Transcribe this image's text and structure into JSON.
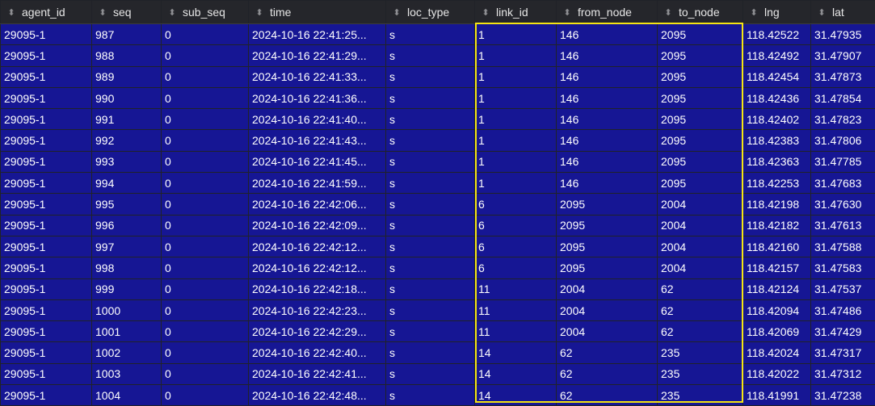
{
  "columns": [
    {
      "key": "agent_id",
      "label": "agent_id"
    },
    {
      "key": "seq",
      "label": "seq"
    },
    {
      "key": "sub_seq",
      "label": "sub_seq"
    },
    {
      "key": "time",
      "label": "time"
    },
    {
      "key": "loc_type",
      "label": "loc_type"
    },
    {
      "key": "link_id",
      "label": "link_id"
    },
    {
      "key": "from_node",
      "label": "from_node"
    },
    {
      "key": "to_node",
      "label": "to_node"
    },
    {
      "key": "lng",
      "label": "lng"
    },
    {
      "key": "lat",
      "label": "lat"
    }
  ],
  "sort_icon": "sort-arrows-icon",
  "colors": {
    "cell_default": "#161694",
    "cell_seq": "#5e1a55",
    "cell_highlight_red": "#96161d",
    "selection_border": "#f5e514"
  },
  "rows": [
    {
      "agent_id": "29095-1",
      "seq": "987",
      "sub_seq": "0",
      "time": "2024-10-16 22:41:25...",
      "loc_type": "s",
      "link_id": "1",
      "from_node": "146",
      "to_node": "2095",
      "lng": "118.42522",
      "lat": "31.47935",
      "red": [
        "to_node"
      ]
    },
    {
      "agent_id": "29095-1",
      "seq": "988",
      "sub_seq": "0",
      "time": "2024-10-16 22:41:29...",
      "loc_type": "s",
      "link_id": "1",
      "from_node": "146",
      "to_node": "2095",
      "lng": "118.42492",
      "lat": "31.47907",
      "red": [
        "to_node"
      ]
    },
    {
      "agent_id": "29095-1",
      "seq": "989",
      "sub_seq": "0",
      "time": "2024-10-16 22:41:33...",
      "loc_type": "s",
      "link_id": "1",
      "from_node": "146",
      "to_node": "2095",
      "lng": "118.42454",
      "lat": "31.47873",
      "red": [
        "to_node"
      ]
    },
    {
      "agent_id": "29095-1",
      "seq": "990",
      "sub_seq": "0",
      "time": "2024-10-16 22:41:36...",
      "loc_type": "s",
      "link_id": "1",
      "from_node": "146",
      "to_node": "2095",
      "lng": "118.42436",
      "lat": "31.47854",
      "red": [
        "to_node"
      ]
    },
    {
      "agent_id": "29095-1",
      "seq": "991",
      "sub_seq": "0",
      "time": "2024-10-16 22:41:40...",
      "loc_type": "s",
      "link_id": "1",
      "from_node": "146",
      "to_node": "2095",
      "lng": "118.42402",
      "lat": "31.47823",
      "red": [
        "to_node"
      ]
    },
    {
      "agent_id": "29095-1",
      "seq": "992",
      "sub_seq": "0",
      "time": "2024-10-16 22:41:43...",
      "loc_type": "s",
      "link_id": "1",
      "from_node": "146",
      "to_node": "2095",
      "lng": "118.42383",
      "lat": "31.47806",
      "red": [
        "to_node"
      ]
    },
    {
      "agent_id": "29095-1",
      "seq": "993",
      "sub_seq": "0",
      "time": "2024-10-16 22:41:45...",
      "loc_type": "s",
      "link_id": "1",
      "from_node": "146",
      "to_node": "2095",
      "lng": "118.42363",
      "lat": "31.47785",
      "red": [
        "to_node"
      ]
    },
    {
      "agent_id": "29095-1",
      "seq": "994",
      "sub_seq": "0",
      "time": "2024-10-16 22:41:59...",
      "loc_type": "s",
      "link_id": "1",
      "from_node": "146",
      "to_node": "2095",
      "lng": "118.42253",
      "lat": "31.47683",
      "red": [
        "to_node"
      ]
    },
    {
      "agent_id": "29095-1",
      "seq": "995",
      "sub_seq": "0",
      "time": "2024-10-16 22:42:06...",
      "loc_type": "s",
      "link_id": "6",
      "from_node": "2095",
      "to_node": "2004",
      "lng": "118.42198",
      "lat": "31.47630",
      "red": [
        "from_node",
        "to_node"
      ]
    },
    {
      "agent_id": "29095-1",
      "seq": "996",
      "sub_seq": "0",
      "time": "2024-10-16 22:42:09...",
      "loc_type": "s",
      "link_id": "6",
      "from_node": "2095",
      "to_node": "2004",
      "lng": "118.42182",
      "lat": "31.47613",
      "red": [
        "from_node",
        "to_node"
      ]
    },
    {
      "agent_id": "29095-1",
      "seq": "997",
      "sub_seq": "0",
      "time": "2024-10-16 22:42:12...",
      "loc_type": "s",
      "link_id": "6",
      "from_node": "2095",
      "to_node": "2004",
      "lng": "118.42160",
      "lat": "31.47588",
      "red": [
        "from_node",
        "to_node"
      ]
    },
    {
      "agent_id": "29095-1",
      "seq": "998",
      "sub_seq": "0",
      "time": "2024-10-16 22:42:12...",
      "loc_type": "s",
      "link_id": "6",
      "from_node": "2095",
      "to_node": "2004",
      "lng": "118.42157",
      "lat": "31.47583",
      "red": [
        "from_node",
        "to_node"
      ]
    },
    {
      "agent_id": "29095-1",
      "seq": "999",
      "sub_seq": "0",
      "time": "2024-10-16 22:42:18...",
      "loc_type": "s",
      "link_id": "11",
      "from_node": "2004",
      "to_node": "62",
      "lng": "118.42124",
      "lat": "31.47537",
      "red": [
        "from_node"
      ]
    },
    {
      "agent_id": "29095-1",
      "seq": "1000",
      "sub_seq": "0",
      "time": "2024-10-16 22:42:23...",
      "loc_type": "s",
      "link_id": "11",
      "from_node": "2004",
      "to_node": "62",
      "lng": "118.42094",
      "lat": "31.47486",
      "red": [
        "from_node"
      ]
    },
    {
      "agent_id": "29095-1",
      "seq": "1001",
      "sub_seq": "0",
      "time": "2024-10-16 22:42:29...",
      "loc_type": "s",
      "link_id": "11",
      "from_node": "2004",
      "to_node": "62",
      "lng": "118.42069",
      "lat": "31.47429",
      "red": [
        "from_node"
      ]
    },
    {
      "agent_id": "29095-1",
      "seq": "1002",
      "sub_seq": "0",
      "time": "2024-10-16 22:42:40...",
      "loc_type": "s",
      "link_id": "14",
      "from_node": "62",
      "to_node": "235",
      "lng": "118.42024",
      "lat": "31.47317",
      "red": []
    },
    {
      "agent_id": "29095-1",
      "seq": "1003",
      "sub_seq": "0",
      "time": "2024-10-16 22:42:41...",
      "loc_type": "s",
      "link_id": "14",
      "from_node": "62",
      "to_node": "235",
      "lng": "118.42022",
      "lat": "31.47312",
      "red": []
    },
    {
      "agent_id": "29095-1",
      "seq": "1004",
      "sub_seq": "0",
      "time": "2024-10-16 22:42:48...",
      "loc_type": "s",
      "link_id": "14",
      "from_node": "62",
      "to_node": "235",
      "lng": "118.41991",
      "lat": "31.47238",
      "red": []
    }
  ]
}
